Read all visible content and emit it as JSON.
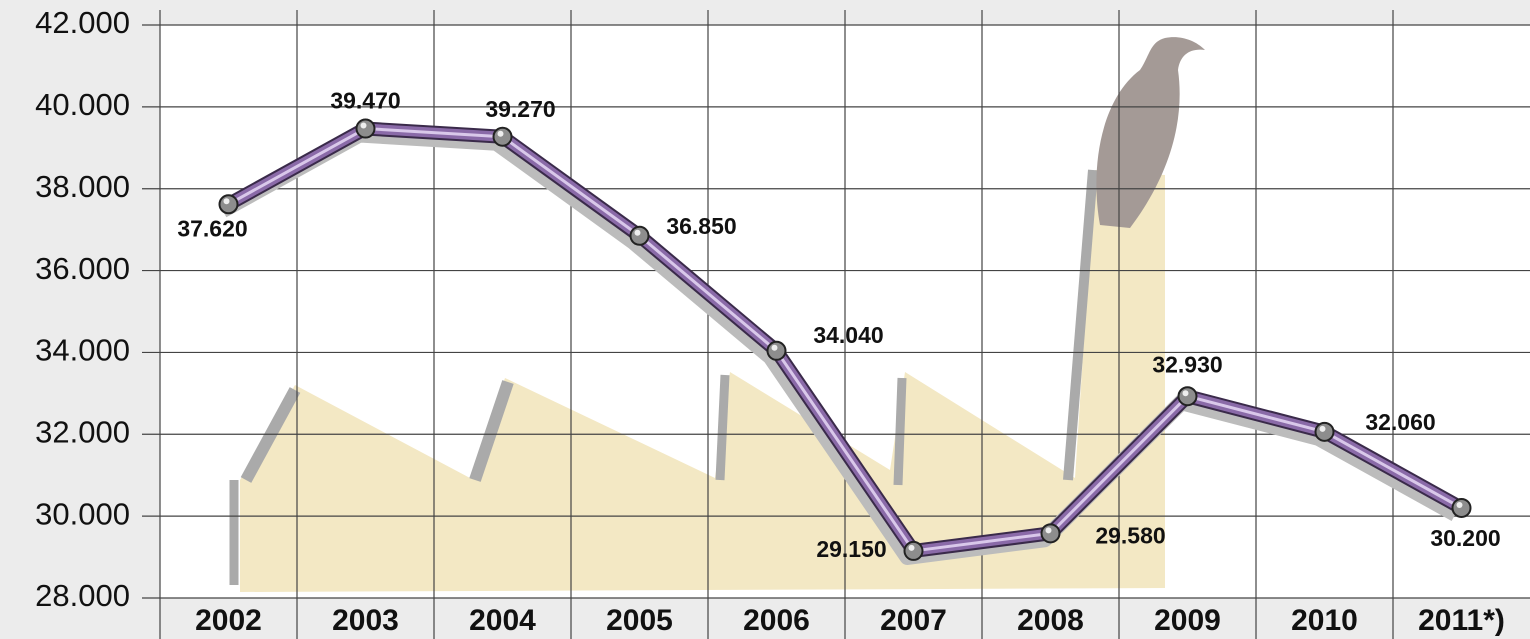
{
  "chart_data": {
    "type": "line",
    "categories": [
      "2002",
      "2003",
      "2004",
      "2005",
      "2006",
      "2007",
      "2008",
      "2009",
      "2010",
      "2011*)"
    ],
    "values": [
      37620,
      39470,
      39270,
      36850,
      34040,
      29150,
      29580,
      32930,
      32060,
      30200
    ],
    "value_labels": [
      "37.620",
      "39.470",
      "39.270",
      "36.850",
      "34.040",
      "29.150",
      "29.580",
      "32.930",
      "32.060",
      "30.200"
    ],
    "color": "#8a6aa8",
    "ylim": [
      28000,
      42000
    ],
    "yticks": [
      {
        "value": 28000,
        "label": "28.000"
      },
      {
        "value": 30000,
        "label": "30.000"
      },
      {
        "value": 32000,
        "label": "32.000"
      },
      {
        "value": 34000,
        "label": "34.000"
      },
      {
        "value": 36000,
        "label": "36.000"
      },
      {
        "value": 38000,
        "label": "38.000"
      },
      {
        "value": 40000,
        "label": "40.000"
      },
      {
        "value": 42000,
        "label": "42.000"
      }
    ],
    "grid": true
  }
}
